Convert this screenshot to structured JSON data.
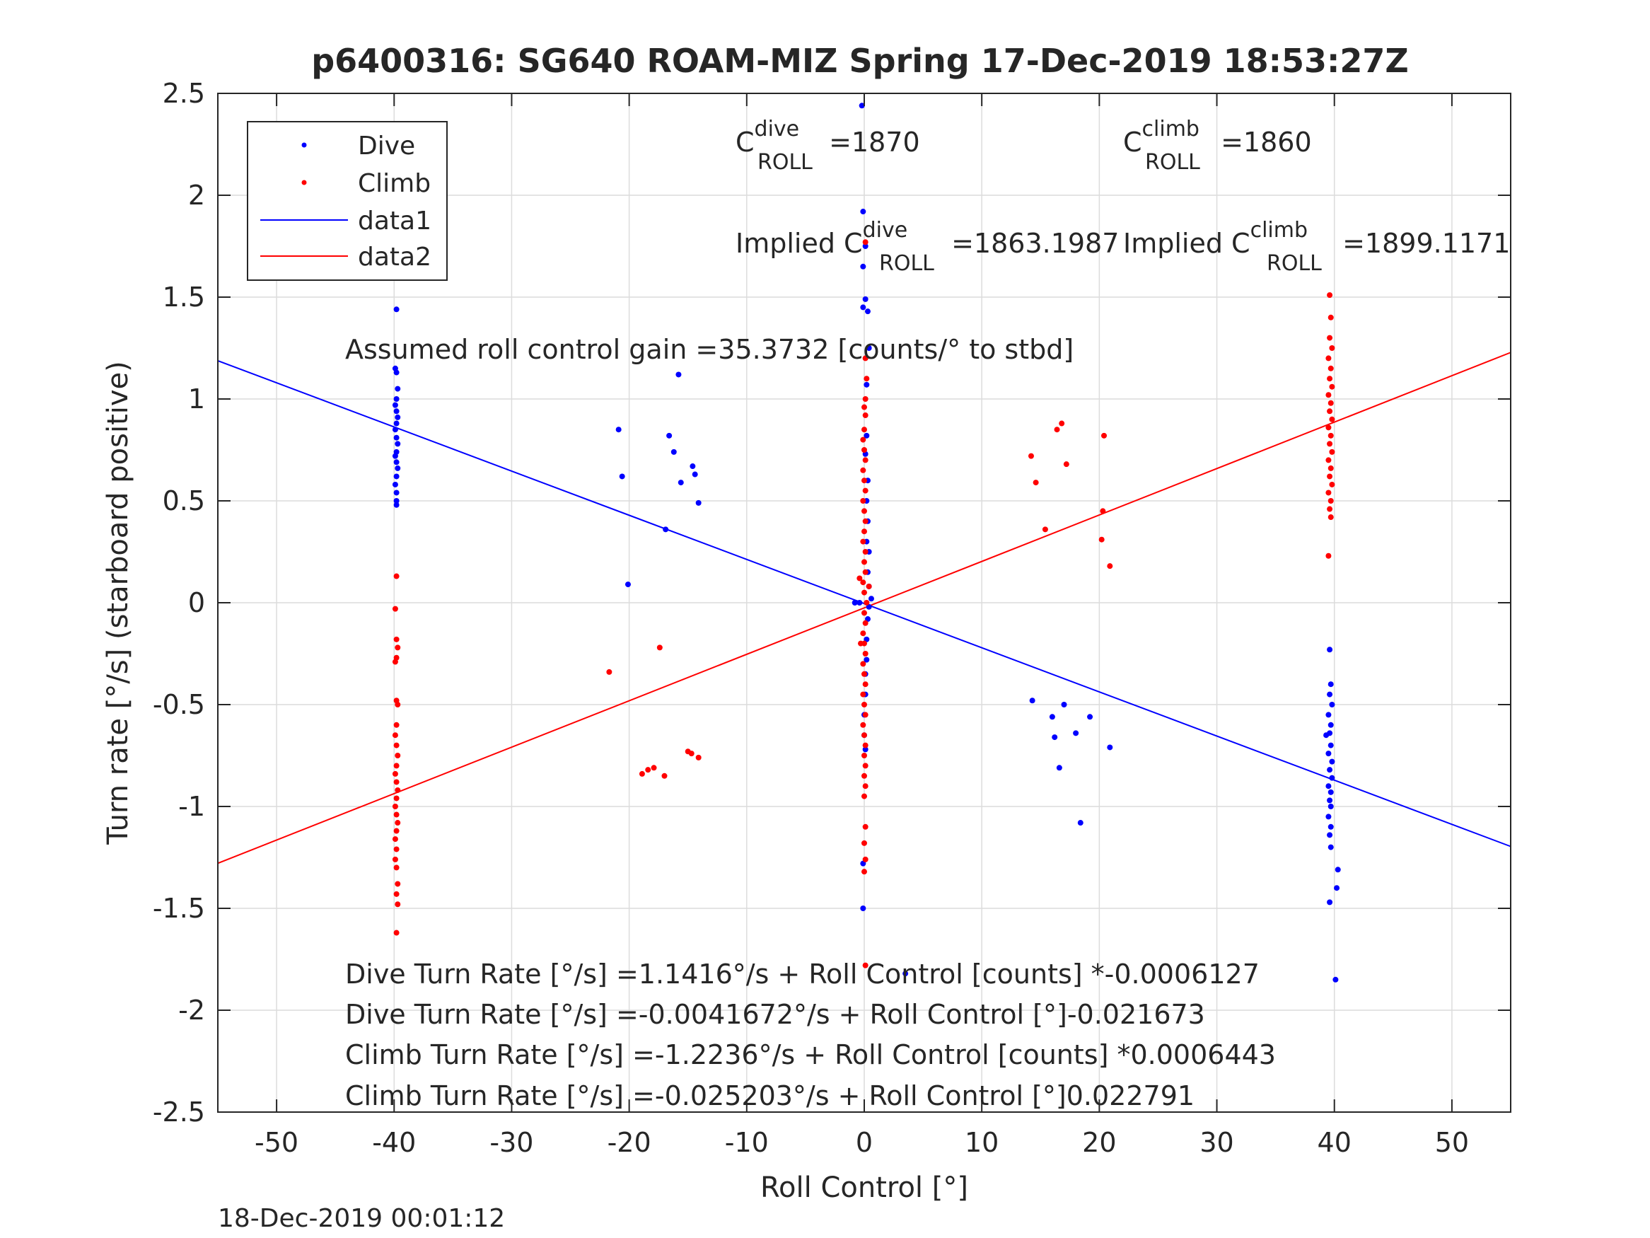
{
  "colors": {
    "dive": "#0000ff",
    "climb": "#ff0000",
    "grid": "#dcdcdc",
    "axis": "#262626"
  },
  "chart_data": {
    "type": "scatter",
    "title": "p6400316: SG640 ROAM-MIZ Spring 17-Dec-2019 18:53:27Z",
    "xlabel": "Roll Control [°]",
    "ylabel": "Turn rate [°/s] (starboard positive)",
    "xlim": [
      -55,
      55
    ],
    "ylim": [
      -2.5,
      2.5
    ],
    "xticks": [
      -50,
      -40,
      -30,
      -20,
      -10,
      0,
      10,
      20,
      30,
      40,
      50
    ],
    "yticks": [
      -2.5,
      -2,
      -1.5,
      -1,
      -0.5,
      0,
      0.5,
      1,
      1.5,
      2,
      2.5
    ],
    "xtick_labels": [
      "-50",
      "-40",
      "-30",
      "-20",
      "-10",
      "0",
      "10",
      "20",
      "30",
      "40",
      "50"
    ],
    "ytick_labels": [
      "-2.5",
      "-2",
      "-1.5",
      "-1",
      "-0.5",
      "0",
      "0.5",
      "1",
      "1.5",
      "2",
      "2.5"
    ],
    "grid": true,
    "legend_position": "top-left",
    "legend": [
      "Dive",
      "Climb",
      "data1",
      "data2"
    ],
    "series": [
      {
        "name": "Dive",
        "kind": "points",
        "color": "#0000ff",
        "points": [
          [
            -39.8,
            1.44
          ],
          [
            -39.9,
            1.15
          ],
          [
            -39.8,
            1.13
          ],
          [
            -39.7,
            1.05
          ],
          [
            -39.8,
            1.0
          ],
          [
            -39.9,
            0.97
          ],
          [
            -39.8,
            0.94
          ],
          [
            -39.7,
            0.91
          ],
          [
            -39.8,
            0.88
          ],
          [
            -39.9,
            0.85
          ],
          [
            -39.8,
            0.81
          ],
          [
            -39.7,
            0.78
          ],
          [
            -39.8,
            0.74
          ],
          [
            -39.9,
            0.72
          ],
          [
            -39.8,
            0.69
          ],
          [
            -39.7,
            0.66
          ],
          [
            -39.8,
            0.62
          ],
          [
            -39.9,
            0.58
          ],
          [
            -39.8,
            0.54
          ],
          [
            -39.8,
            0.5
          ],
          [
            -39.8,
            0.48
          ],
          [
            -20.9,
            0.85
          ],
          [
            -20.6,
            0.62
          ],
          [
            -16.6,
            0.82
          ],
          [
            -16.2,
            0.74
          ],
          [
            -15.8,
            1.12
          ],
          [
            -15.6,
            0.59
          ],
          [
            -14.6,
            0.67
          ],
          [
            -14.4,
            0.63
          ],
          [
            -14.1,
            0.49
          ],
          [
            -16.9,
            0.36
          ],
          [
            -20.1,
            0.09
          ],
          [
            -0.2,
            2.44
          ],
          [
            -0.1,
            1.92
          ],
          [
            0.1,
            1.75
          ],
          [
            -0.1,
            1.65
          ],
          [
            0.1,
            1.49
          ],
          [
            -0.1,
            1.45
          ],
          [
            0.3,
            1.43
          ],
          [
            0.4,
            1.25
          ],
          [
            0.2,
            1.07
          ],
          [
            0.2,
            0.82
          ],
          [
            0.1,
            0.73
          ],
          [
            0.3,
            0.6
          ],
          [
            0.2,
            0.5
          ],
          [
            0.3,
            0.4
          ],
          [
            0.2,
            0.3
          ],
          [
            0.4,
            0.25
          ],
          [
            0.3,
            0.15
          ],
          [
            0.4,
            0.08
          ],
          [
            0.6,
            0.02
          ],
          [
            -0.8,
            0.0
          ],
          [
            -0.4,
            0.0
          ],
          [
            0.4,
            -0.02
          ],
          [
            0.3,
            -0.08
          ],
          [
            0.2,
            -0.18
          ],
          [
            0.2,
            -0.28
          ],
          [
            0.1,
            -0.35
          ],
          [
            0.1,
            -0.45
          ],
          [
            0.0,
            -0.55
          ],
          [
            0.0,
            -0.65
          ],
          [
            0.1,
            -0.72
          ],
          [
            -0.1,
            -1.28
          ],
          [
            -0.1,
            -1.5
          ],
          [
            14.3,
            -0.48
          ],
          [
            16.0,
            -0.56
          ],
          [
            16.2,
            -0.66
          ],
          [
            16.6,
            -0.81
          ],
          [
            17.0,
            -0.5
          ],
          [
            18.0,
            -0.64
          ],
          [
            18.4,
            -1.08
          ],
          [
            19.2,
            -0.56
          ],
          [
            20.9,
            -0.71
          ],
          [
            39.6,
            -0.23
          ],
          [
            39.7,
            -0.4
          ],
          [
            39.6,
            -0.45
          ],
          [
            39.8,
            -0.5
          ],
          [
            39.5,
            -0.55
          ],
          [
            39.7,
            -0.6
          ],
          [
            39.6,
            -0.64
          ],
          [
            39.3,
            -0.65
          ],
          [
            39.7,
            -0.7
          ],
          [
            39.5,
            -0.74
          ],
          [
            39.8,
            -0.78
          ],
          [
            39.6,
            -0.82
          ],
          [
            39.8,
            -0.86
          ],
          [
            39.5,
            -0.9
          ],
          [
            39.7,
            -0.93
          ],
          [
            39.6,
            -0.97
          ],
          [
            39.7,
            -1.0
          ],
          [
            39.5,
            -1.05
          ],
          [
            39.7,
            -1.1
          ],
          [
            39.6,
            -1.14
          ],
          [
            39.7,
            -1.2
          ],
          [
            40.3,
            -1.31
          ],
          [
            40.2,
            -1.4
          ],
          [
            39.6,
            -1.47
          ],
          [
            40.1,
            -1.85
          ],
          [
            3.5,
            -1.82
          ]
        ]
      },
      {
        "name": "Climb",
        "kind": "points",
        "color": "#ff0000",
        "points": [
          [
            -39.8,
            0.13
          ],
          [
            -39.9,
            -0.03
          ],
          [
            -39.8,
            -0.18
          ],
          [
            -39.7,
            -0.22
          ],
          [
            -39.8,
            -0.27
          ],
          [
            -39.9,
            -0.29
          ],
          [
            -39.8,
            -0.48
          ],
          [
            -39.7,
            -0.5
          ],
          [
            -39.8,
            -0.6
          ],
          [
            -39.9,
            -0.65
          ],
          [
            -39.8,
            -0.7
          ],
          [
            -39.7,
            -0.75
          ],
          [
            -39.8,
            -0.8
          ],
          [
            -39.9,
            -0.84
          ],
          [
            -39.8,
            -0.88
          ],
          [
            -39.7,
            -0.92
          ],
          [
            -39.8,
            -0.96
          ],
          [
            -39.9,
            -1.0
          ],
          [
            -39.8,
            -1.04
          ],
          [
            -39.7,
            -1.08
          ],
          [
            -39.8,
            -1.12
          ],
          [
            -39.9,
            -1.16
          ],
          [
            -39.8,
            -1.21
          ],
          [
            -39.9,
            -1.26
          ],
          [
            -39.8,
            -1.3
          ],
          [
            -39.7,
            -1.38
          ],
          [
            -39.8,
            -1.43
          ],
          [
            -39.7,
            -1.48
          ],
          [
            -39.8,
            -1.62
          ],
          [
            -21.7,
            -0.34
          ],
          [
            -17.4,
            -0.22
          ],
          [
            -18.9,
            -0.84
          ],
          [
            -18.4,
            -0.82
          ],
          [
            -17.9,
            -0.81
          ],
          [
            -17.0,
            -0.85
          ],
          [
            -15.0,
            -0.73
          ],
          [
            -14.7,
            -0.74
          ],
          [
            -14.1,
            -0.76
          ],
          [
            0.1,
            1.77
          ],
          [
            0.1,
            1.2
          ],
          [
            0.2,
            1.1
          ],
          [
            0.1,
            1.0
          ],
          [
            0.0,
            0.96
          ],
          [
            0.1,
            0.92
          ],
          [
            0.0,
            0.85
          ],
          [
            -0.1,
            0.8
          ],
          [
            0.0,
            0.75
          ],
          [
            0.1,
            0.7
          ],
          [
            -0.1,
            0.65
          ],
          [
            0.0,
            0.6
          ],
          [
            0.1,
            0.55
          ],
          [
            -0.1,
            0.5
          ],
          [
            0.0,
            0.45
          ],
          [
            0.1,
            0.4
          ],
          [
            0.0,
            0.35
          ],
          [
            -0.1,
            0.3
          ],
          [
            0.1,
            0.25
          ],
          [
            0.0,
            0.2
          ],
          [
            0.1,
            0.15
          ],
          [
            -0.1,
            0.1
          ],
          [
            0.0,
            0.05
          ],
          [
            0.2,
            0.0
          ],
          [
            0.0,
            -0.05
          ],
          [
            0.1,
            -0.1
          ],
          [
            -0.1,
            -0.15
          ],
          [
            0.0,
            -0.2
          ],
          [
            0.1,
            -0.25
          ],
          [
            -0.1,
            -0.3
          ],
          [
            0.0,
            -0.35
          ],
          [
            0.1,
            -0.4
          ],
          [
            -0.1,
            -0.45
          ],
          [
            0.0,
            -0.5
          ],
          [
            0.1,
            -0.55
          ],
          [
            -0.1,
            -0.6
          ],
          [
            0.0,
            -0.65
          ],
          [
            0.1,
            -0.7
          ],
          [
            0.0,
            -0.75
          ],
          [
            0.1,
            -0.8
          ],
          [
            0.0,
            -0.85
          ],
          [
            0.1,
            -0.9
          ],
          [
            0.0,
            -0.95
          ],
          [
            0.1,
            -1.1
          ],
          [
            0.0,
            -1.18
          ],
          [
            0.1,
            -1.26
          ],
          [
            0.0,
            -1.32
          ],
          [
            0.1,
            -1.78
          ],
          [
            -0.3,
            -0.2
          ],
          [
            0.4,
            0.08
          ],
          [
            -0.4,
            0.12
          ],
          [
            14.2,
            0.72
          ],
          [
            14.6,
            0.59
          ],
          [
            15.4,
            0.36
          ],
          [
            16.4,
            0.85
          ],
          [
            16.8,
            0.88
          ],
          [
            17.2,
            0.68
          ],
          [
            20.2,
            0.31
          ],
          [
            20.3,
            0.45
          ],
          [
            20.4,
            0.82
          ],
          [
            20.9,
            0.18
          ],
          [
            39.6,
            1.51
          ],
          [
            39.7,
            1.4
          ],
          [
            39.6,
            1.3
          ],
          [
            39.8,
            1.25
          ],
          [
            39.5,
            1.2
          ],
          [
            39.7,
            1.15
          ],
          [
            39.6,
            1.1
          ],
          [
            39.8,
            1.06
          ],
          [
            39.5,
            1.02
          ],
          [
            39.7,
            0.98
          ],
          [
            39.6,
            0.94
          ],
          [
            39.8,
            0.9
          ],
          [
            39.5,
            0.86
          ],
          [
            39.7,
            0.82
          ],
          [
            39.6,
            0.78
          ],
          [
            39.8,
            0.74
          ],
          [
            39.5,
            0.7
          ],
          [
            39.7,
            0.66
          ],
          [
            39.6,
            0.62
          ],
          [
            39.8,
            0.58
          ],
          [
            39.5,
            0.54
          ],
          [
            39.7,
            0.5
          ],
          [
            39.6,
            0.46
          ],
          [
            39.7,
            0.42
          ],
          [
            39.5,
            0.23
          ]
        ]
      },
      {
        "name": "data1",
        "kind": "line",
        "color": "#0000ff",
        "intercept": -0.0041672,
        "slope": -0.021673
      },
      {
        "name": "data2",
        "kind": "line",
        "color": "#ff0000",
        "intercept": -0.025203,
        "slope": 0.022791
      }
    ],
    "annotations": {
      "c_dive_base": "C",
      "c_dive_sup": "dive",
      "c_dive_sub": "ROLL",
      "c_dive_val": " =1870",
      "c_climb_base": "C",
      "c_climb_sup": "climb",
      "c_climb_sub": "ROLL",
      "c_climb_val": " =1860",
      "implied_dive_base": "Implied C",
      "implied_dive_sup": "dive",
      "implied_dive_sub": "ROLL",
      "implied_dive_val": " =1863.1987",
      "implied_climb_base": "Implied C",
      "implied_climb_sup": "climb",
      "implied_climb_sub": "ROLL",
      "implied_climb_val": " =1899.1171",
      "gain": "Assumed roll control gain =35.3732 [counts/° to stbd]",
      "eq1": "Dive Turn Rate [°/s] =1.1416°/s + Roll Control [counts] *-0.0006127",
      "eq2": "Dive Turn Rate [°/s] =-0.0041672°/s + Roll Control [°]-0.021673",
      "eq3": "Climb Turn Rate [°/s] =-1.2236°/s + Roll Control [counts] *0.0006443",
      "eq4": "Climb Turn Rate [°/s] =-0.025203°/s + Roll Control [°]0.022791"
    },
    "footer": "18-Dec-2019 00:01:12"
  }
}
